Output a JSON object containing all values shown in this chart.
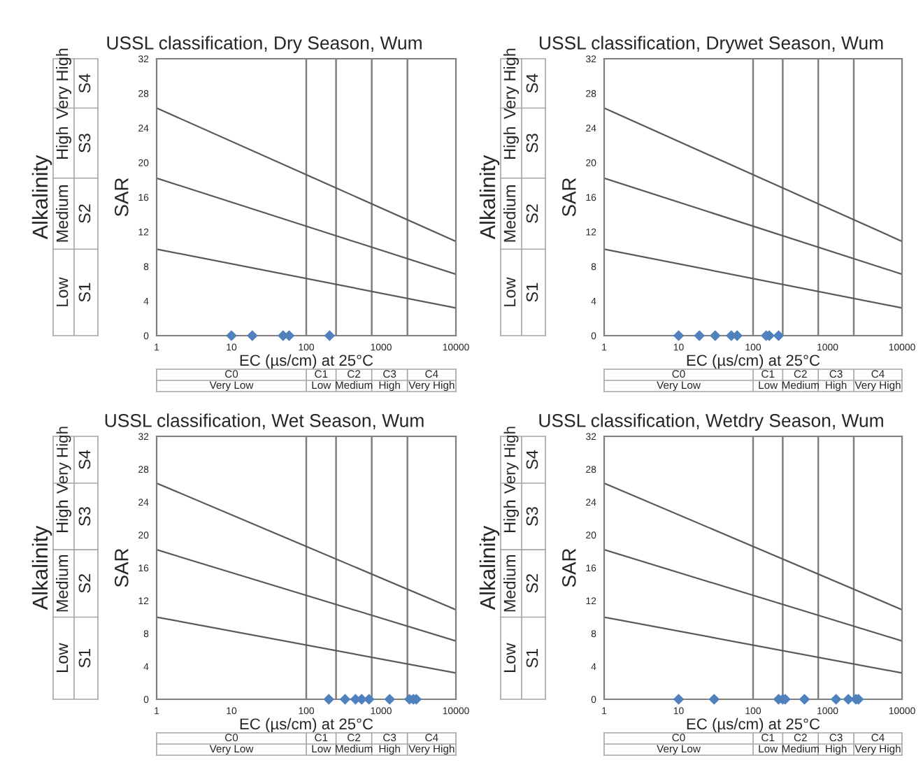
{
  "chart_data": [
    {
      "type": "scatter",
      "title": "USSL classification, Dry Season, Wum",
      "xlabel": "EC (µs/cm) at 25°C",
      "ylabel": "SAR",
      "log": "x",
      "grid": false,
      "xlim": [
        1,
        10000
      ],
      "xticks": [
        1,
        10,
        100,
        1000,
        10000
      ],
      "ylim": [
        0,
        32
      ],
      "yticks": [
        0,
        4,
        8,
        12,
        16,
        20,
        24,
        28,
        32
      ],
      "series": [
        {
          "type": "line",
          "color": "#595959",
          "x": [
            1,
            10000
          ],
          "values": [
            10,
            3.2
          ]
        },
        {
          "type": "line",
          "color": "#595959",
          "x": [
            1,
            10000
          ],
          "values": [
            18.2,
            7.1
          ]
        },
        {
          "type": "line",
          "color": "#595959",
          "x": [
            1,
            10000
          ],
          "values": [
            26.3,
            10.9
          ]
        },
        {
          "marker": "diamond",
          "color": "#4f81bd",
          "x": [
            10,
            19,
            49,
            59,
            205
          ],
          "values": [
            0,
            0,
            0,
            0,
            0
          ]
        }
      ],
      "ref_lines": [
        {
          "axis": "x",
          "value": 100,
          "color": "#7f7f7f"
        },
        {
          "axis": "x",
          "value": 250,
          "color": "#7f7f7f"
        },
        {
          "axis": "x",
          "value": 750,
          "color": "#7f7f7f"
        },
        {
          "axis": "x",
          "value": 2250,
          "color": "#7f7f7f"
        }
      ],
      "annotations": [
        "Alkalinity",
        "Low",
        "Medium",
        "High",
        "Very High",
        "S1",
        "S2",
        "S3",
        "S4",
        "C0",
        "C1",
        "C2",
        "C3",
        "C4",
        "Very Low",
        "Low",
        "Medium",
        "High",
        "Very High"
      ]
    },
    {
      "type": "scatter",
      "title": "USSL classification, Drywet Season, Wum",
      "xlabel": "EC (µs/cm) at 25°C",
      "ylabel": "SAR",
      "log": "x",
      "grid": false,
      "xlim": [
        1,
        10000
      ],
      "xticks": [
        1,
        10,
        100,
        1000,
        10000
      ],
      "ylim": [
        0,
        32
      ],
      "yticks": [
        0,
        4,
        8,
        12,
        16,
        20,
        24,
        28,
        32
      ],
      "series": [
        {
          "type": "line",
          "color": "#595959",
          "x": [
            1,
            10000
          ],
          "values": [
            10,
            3.2
          ]
        },
        {
          "type": "line",
          "color": "#595959",
          "x": [
            1,
            10000
          ],
          "values": [
            18.2,
            7.1
          ]
        },
        {
          "type": "line",
          "color": "#595959",
          "x": [
            1,
            10000
          ],
          "values": [
            26.3,
            10.9
          ]
        },
        {
          "marker": "diamond",
          "color": "#4f81bd",
          "x": [
            10,
            19,
            31,
            51,
            61,
            150,
            165,
            220
          ],
          "values": [
            0,
            0,
            0,
            0,
            0,
            0,
            0,
            0
          ]
        }
      ],
      "ref_lines": [
        {
          "axis": "x",
          "value": 100,
          "color": "#7f7f7f"
        },
        {
          "axis": "x",
          "value": 250,
          "color": "#7f7f7f"
        },
        {
          "axis": "x",
          "value": 750,
          "color": "#7f7f7f"
        },
        {
          "axis": "x",
          "value": 2250,
          "color": "#7f7f7f"
        }
      ],
      "annotations": [
        "Alkalinity",
        "Low",
        "Medium",
        "High",
        "Very High",
        "S1",
        "S2",
        "S3",
        "S4",
        "C0",
        "C1",
        "C2",
        "C3",
        "C4",
        "Very Low",
        "Low",
        "Medium",
        "High",
        "Very High"
      ]
    },
    {
      "type": "scatter",
      "title": "USSL classification, Wet Season, Wum",
      "xlabel": "EC (µs/cm) at 25°C",
      "ylabel": "SAR",
      "log": "x",
      "grid": false,
      "xlim": [
        1,
        10000
      ],
      "xticks": [
        1,
        10,
        100,
        1000,
        10000
      ],
      "ylim": [
        0,
        32
      ],
      "yticks": [
        0,
        4,
        8,
        12,
        16,
        20,
        24,
        28,
        32
      ],
      "series": [
        {
          "type": "line",
          "color": "#595959",
          "x": [
            1,
            10000
          ],
          "values": [
            10,
            3.2
          ]
        },
        {
          "type": "line",
          "color": "#595959",
          "x": [
            1,
            10000
          ],
          "values": [
            18.2,
            7.1
          ]
        },
        {
          "type": "line",
          "color": "#595959",
          "x": [
            1,
            10000
          ],
          "values": [
            26.3,
            10.9
          ]
        },
        {
          "marker": "diamond",
          "color": "#4f81bd",
          "x": [
            200,
            330,
            455,
            550,
            690,
            1300,
            2400,
            2700,
            2950
          ],
          "values": [
            0,
            0,
            0,
            0,
            0,
            0,
            0,
            0,
            0
          ]
        }
      ],
      "ref_lines": [
        {
          "axis": "x",
          "value": 100,
          "color": "#7f7f7f"
        },
        {
          "axis": "x",
          "value": 250,
          "color": "#7f7f7f"
        },
        {
          "axis": "x",
          "value": 750,
          "color": "#7f7f7f"
        },
        {
          "axis": "x",
          "value": 2250,
          "color": "#7f7f7f"
        }
      ],
      "annotations": [
        "Alkalinity",
        "Low",
        "Medium",
        "High",
        "Very High",
        "S1",
        "S2",
        "S3",
        "S4",
        "C0",
        "C1",
        "C2",
        "C3",
        "C4",
        "Very Low",
        "Low",
        "Medium",
        "High",
        "Very High"
      ]
    },
    {
      "type": "scatter",
      "title": "USSL classification, Wetdry Season, Wum",
      "xlabel": "EC (µs/cm) at 25°C",
      "ylabel": "SAR",
      "log": "x",
      "grid": false,
      "xlim": [
        1,
        10000
      ],
      "xticks": [
        1,
        10,
        100,
        1000,
        10000
      ],
      "ylim": [
        0,
        32
      ],
      "yticks": [
        0,
        4,
        8,
        12,
        16,
        20,
        24,
        28,
        32
      ],
      "series": [
        {
          "type": "line",
          "color": "#595959",
          "x": [
            1,
            10000
          ],
          "values": [
            10,
            3.2
          ]
        },
        {
          "type": "line",
          "color": "#595959",
          "x": [
            1,
            10000
          ],
          "values": [
            18.2,
            7.1
          ]
        },
        {
          "type": "line",
          "color": "#595959",
          "x": [
            1,
            10000
          ],
          "values": [
            26.3,
            10.9
          ]
        },
        {
          "marker": "diamond",
          "color": "#4f81bd",
          "x": [
            10,
            30,
            220,
            250,
            270,
            490,
            1300,
            1900,
            2400,
            2600
          ],
          "values": [
            0,
            0,
            0,
            0,
            0,
            0,
            0,
            0,
            0,
            0
          ]
        }
      ],
      "ref_lines": [
        {
          "axis": "x",
          "value": 100,
          "color": "#7f7f7f"
        },
        {
          "axis": "x",
          "value": 250,
          "color": "#7f7f7f"
        },
        {
          "axis": "x",
          "value": 750,
          "color": "#7f7f7f"
        },
        {
          "axis": "x",
          "value": 2250,
          "color": "#7f7f7f"
        }
      ],
      "annotations": [
        "Alkalinity",
        "Low",
        "Medium",
        "High",
        "Very High",
        "S1",
        "S2",
        "S3",
        "S4",
        "C0",
        "C1",
        "C2",
        "C3",
        "C4",
        "Very Low",
        "Low",
        "Medium",
        "High",
        "Very High"
      ]
    }
  ]
}
